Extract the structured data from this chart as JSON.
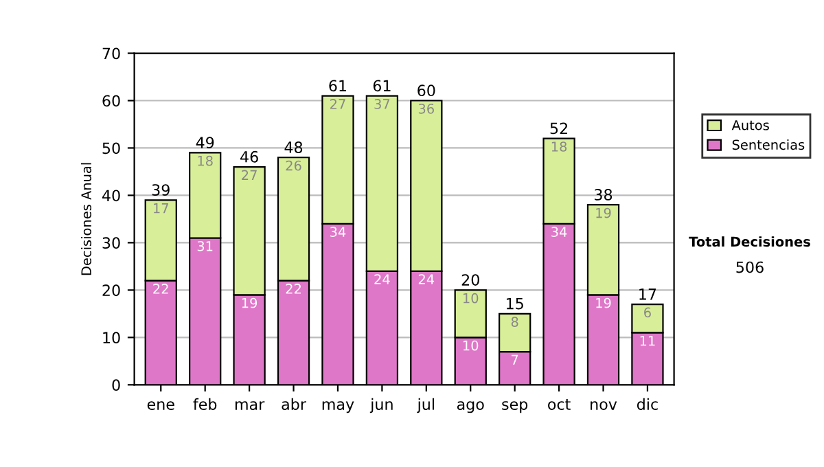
{
  "chart_data": {
    "type": "bar",
    "stacked": true,
    "ylabel": "Decisiones Anual",
    "categories": [
      "ene",
      "feb",
      "mar",
      "abr",
      "may",
      "jun",
      "jul",
      "ago",
      "sep",
      "oct",
      "nov",
      "dic"
    ],
    "series": [
      {
        "name": "Sentencias",
        "color": "#df77c8",
        "values": [
          22,
          31,
          19,
          22,
          34,
          24,
          24,
          10,
          7,
          34,
          19,
          11
        ]
      },
      {
        "name": "Autos",
        "color": "#d8ee98",
        "values": [
          17,
          18,
          27,
          26,
          27,
          37,
          36,
          10,
          8,
          18,
          19,
          6
        ]
      }
    ],
    "totals": [
      "39",
      "49",
      "46",
      "48",
      "61",
      "61",
      "60",
      "20",
      "15",
      "52",
      "38",
      "17"
    ],
    "data_labels": true,
    "ylim": [
      0,
      70
    ],
    "yticks": [
      0,
      10,
      20,
      30,
      40,
      50,
      60,
      70
    ],
    "grid": "y",
    "legend": "right",
    "annotations": [
      "Total Decisiones",
      "506"
    ]
  }
}
